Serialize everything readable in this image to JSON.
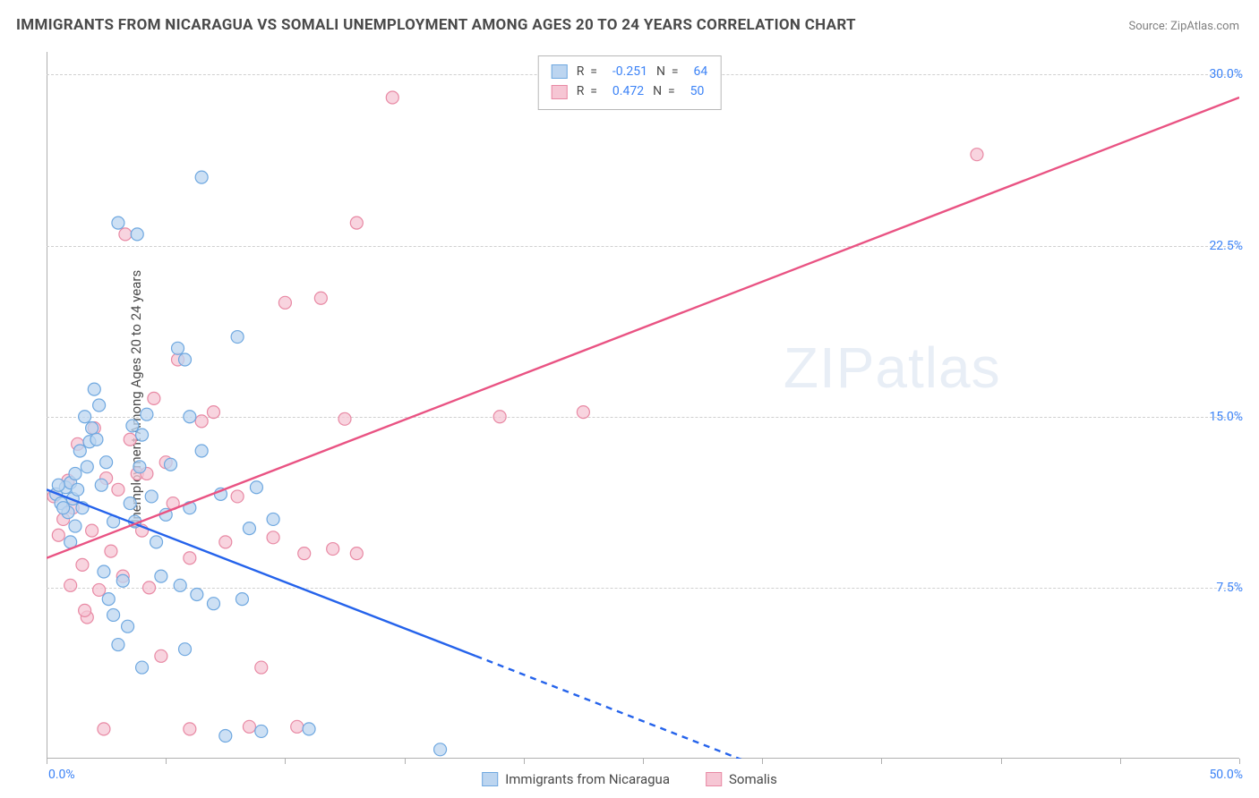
{
  "title": "IMMIGRANTS FROM NICARAGUA VS SOMALI UNEMPLOYMENT AMONG AGES 20 TO 24 YEARS CORRELATION CHART",
  "source_label": "Source: ",
  "source_site": "ZipAtlas.com",
  "ylabel": "Unemployment Among Ages 20 to 24 years",
  "watermark_a": "ZIP",
  "watermark_b": "atlas",
  "chart": {
    "type": "scatter",
    "xlim": [
      0,
      50
    ],
    "ylim": [
      0,
      31
    ],
    "yticks": [
      {
        "v": 7.5,
        "label": "7.5%"
      },
      {
        "v": 15.0,
        "label": "15.0%"
      },
      {
        "v": 22.5,
        "label": "22.5%"
      },
      {
        "v": 30.0,
        "label": "30.0%"
      }
    ],
    "xtick_positions": [
      0,
      5,
      10,
      15,
      20,
      25,
      30,
      35,
      40,
      45,
      50
    ],
    "xtick_labels": {
      "start": "0.0%",
      "end": "50.0%"
    },
    "grid_color": "#d0d0d0",
    "axis_color": "#b0b0b0",
    "background_color": "#ffffff",
    "series": [
      {
        "id": "nicaragua",
        "label": "Immigrants from Nicaragua",
        "fill": "#bcd5f0",
        "stroke": "#6fa8e0",
        "line_color": "#2563eb",
        "line_dash_color": "#2563eb",
        "R": "-0.251",
        "N": "64",
        "trend": {
          "x1": 0,
          "y1": 11.8,
          "x2": 18,
          "y2": 4.5,
          "x2d": 30.5,
          "y2d": -0.6
        },
        "points": [
          [
            0.4,
            11.6
          ],
          [
            0.6,
            11.2
          ],
          [
            0.8,
            11.9
          ],
          [
            0.9,
            10.8
          ],
          [
            1.0,
            12.1
          ],
          [
            1.1,
            11.4
          ],
          [
            1.2,
            12.5
          ],
          [
            1.2,
            10.2
          ],
          [
            1.3,
            11.8
          ],
          [
            0.7,
            11.0
          ],
          [
            0.5,
            12.0
          ],
          [
            1.4,
            13.5
          ],
          [
            1.5,
            11.0
          ],
          [
            1.6,
            15.0
          ],
          [
            1.7,
            12.8
          ],
          [
            1.8,
            13.9
          ],
          [
            2.0,
            16.2
          ],
          [
            1.9,
            14.5
          ],
          [
            2.2,
            15.5
          ],
          [
            2.3,
            12.0
          ],
          [
            2.4,
            8.2
          ],
          [
            2.6,
            7.0
          ],
          [
            2.8,
            6.3
          ],
          [
            3.0,
            5.0
          ],
          [
            3.2,
            7.8
          ],
          [
            3.4,
            5.8
          ],
          [
            3.5,
            11.2
          ],
          [
            3.7,
            10.4
          ],
          [
            3.9,
            12.8
          ],
          [
            4.0,
            14.2
          ],
          [
            4.2,
            15.1
          ],
          [
            4.4,
            11.5
          ],
          [
            4.6,
            9.5
          ],
          [
            4.8,
            8.0
          ],
          [
            5.0,
            10.7
          ],
          [
            5.2,
            12.9
          ],
          [
            5.5,
            18.0
          ],
          [
            5.6,
            7.6
          ],
          [
            5.8,
            4.8
          ],
          [
            6.0,
            11.0
          ],
          [
            6.3,
            7.2
          ],
          [
            6.5,
            13.5
          ],
          [
            7.0,
            6.8
          ],
          [
            7.5,
            1.0
          ],
          [
            8.0,
            18.5
          ],
          [
            8.2,
            7.0
          ],
          [
            8.5,
            10.1
          ],
          [
            9.0,
            1.2
          ],
          [
            9.5,
            10.5
          ],
          [
            11.0,
            1.3
          ],
          [
            5.8,
            17.5
          ],
          [
            3.0,
            23.5
          ],
          [
            3.8,
            23.0
          ],
          [
            6.5,
            25.5
          ],
          [
            6.0,
            15.0
          ],
          [
            7.3,
            11.6
          ],
          [
            2.1,
            14.0
          ],
          [
            2.8,
            10.4
          ],
          [
            1.0,
            9.5
          ],
          [
            8.8,
            11.9
          ],
          [
            16.5,
            0.4
          ],
          [
            4.0,
            4.0
          ],
          [
            3.6,
            14.6
          ],
          [
            2.5,
            13.0
          ]
        ]
      },
      {
        "id": "somali",
        "label": "Somalis",
        "fill": "#f6c6d4",
        "stroke": "#e889a4",
        "line_color": "#e95383",
        "R": "0.472",
        "N": "50",
        "trend": {
          "x1": 0,
          "y1": 8.8,
          "x2": 50,
          "y2": 29.0
        },
        "points": [
          [
            0.3,
            11.5
          ],
          [
            0.5,
            9.8
          ],
          [
            0.7,
            10.5
          ],
          [
            0.9,
            12.2
          ],
          [
            1.0,
            7.6
          ],
          [
            1.1,
            11.0
          ],
          [
            1.3,
            13.8
          ],
          [
            1.5,
            8.5
          ],
          [
            1.7,
            6.2
          ],
          [
            1.9,
            10.0
          ],
          [
            2.0,
            14.5
          ],
          [
            2.2,
            7.4
          ],
          [
            2.5,
            12.3
          ],
          [
            2.7,
            9.1
          ],
          [
            3.0,
            11.8
          ],
          [
            3.2,
            8.0
          ],
          [
            3.5,
            14.0
          ],
          [
            3.8,
            12.5
          ],
          [
            4.0,
            10.0
          ],
          [
            4.3,
            7.5
          ],
          [
            4.5,
            15.8
          ],
          [
            4.8,
            4.5
          ],
          [
            5.0,
            13.0
          ],
          [
            5.3,
            11.2
          ],
          [
            5.5,
            17.5
          ],
          [
            6.0,
            8.8
          ],
          [
            6.5,
            14.8
          ],
          [
            7.0,
            15.2
          ],
          [
            7.5,
            9.5
          ],
          [
            8.0,
            11.5
          ],
          [
            8.5,
            1.4
          ],
          [
            9.0,
            4.0
          ],
          [
            9.5,
            9.7
          ],
          [
            10.5,
            1.4
          ],
          [
            10.0,
            20.0
          ],
          [
            11.5,
            20.2
          ],
          [
            12.5,
            14.9
          ],
          [
            12.0,
            9.2
          ],
          [
            13.0,
            9.0
          ],
          [
            13.0,
            23.5
          ],
          [
            14.5,
            29.0
          ],
          [
            19.0,
            15.0
          ],
          [
            22.5,
            15.2
          ],
          [
            3.3,
            23.0
          ],
          [
            2.4,
            1.3
          ],
          [
            6.0,
            1.3
          ],
          [
            39.0,
            26.5
          ],
          [
            10.8,
            9.0
          ],
          [
            1.6,
            6.5
          ],
          [
            4.2,
            12.5
          ]
        ]
      }
    ]
  },
  "legend_top": {
    "eq_r": "R  =  ",
    "eq_n": "N  =  "
  }
}
